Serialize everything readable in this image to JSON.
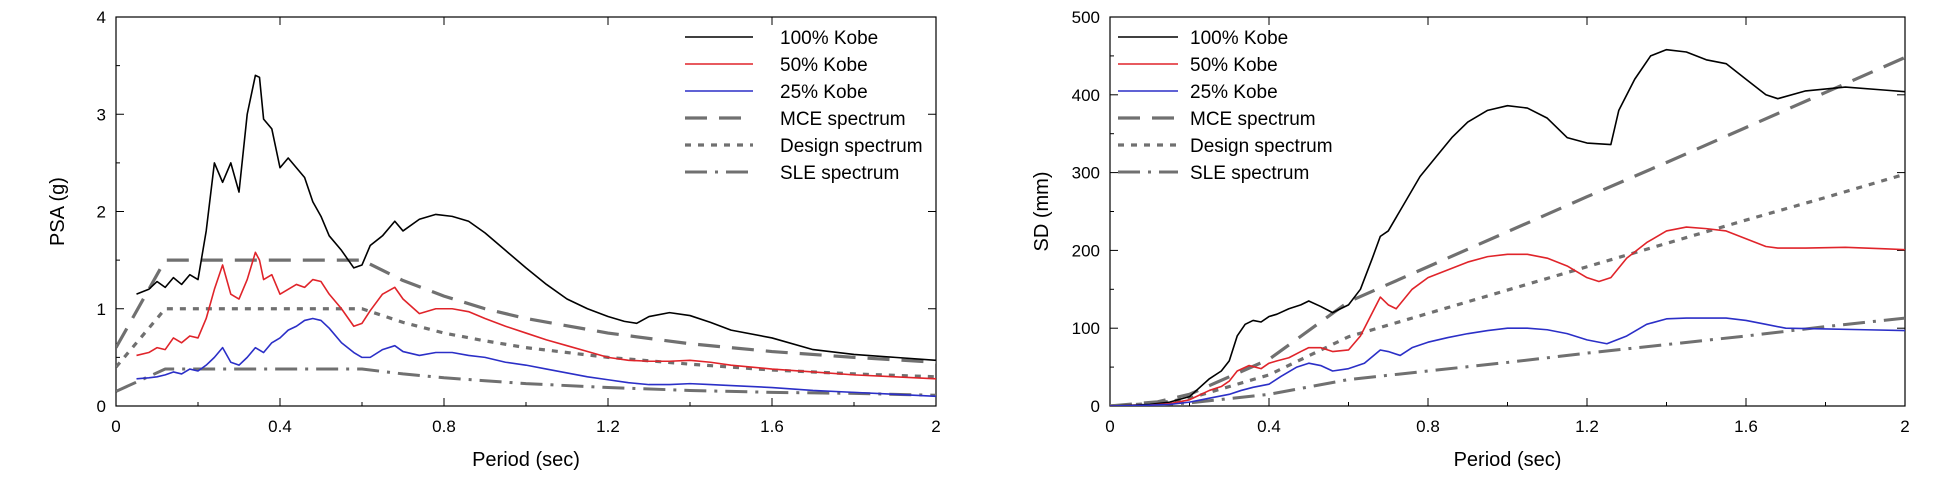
{
  "chart_data": [
    {
      "type": "line",
      "xlabel": "Period (sec)",
      "ylabel": "PSA (g)",
      "xlim": [
        0,
        2
      ],
      "ylim": [
        0,
        4
      ],
      "xticks": [
        "0",
        "0.4",
        "0.8",
        "1.2",
        "1.6",
        "2"
      ],
      "yticks": [
        "0",
        "1",
        "2",
        "3",
        "4"
      ],
      "grid": false,
      "legend_position": "top-right",
      "series": [
        {
          "name": "100% Kobe",
          "color": "#000000",
          "dash": "solid",
          "x": [
            0.05,
            0.08,
            0.1,
            0.12,
            0.14,
            0.16,
            0.18,
            0.2,
            0.22,
            0.24,
            0.26,
            0.28,
            0.3,
            0.32,
            0.34,
            0.35,
            0.36,
            0.38,
            0.4,
            0.42,
            0.44,
            0.46,
            0.48,
            0.5,
            0.52,
            0.55,
            0.58,
            0.6,
            0.62,
            0.65,
            0.68,
            0.7,
            0.74,
            0.78,
            0.82,
            0.86,
            0.9,
            0.95,
            1.0,
            1.05,
            1.1,
            1.15,
            1.2,
            1.24,
            1.27,
            1.3,
            1.35,
            1.4,
            1.45,
            1.5,
            1.6,
            1.7,
            1.8,
            1.9,
            2.0
          ],
          "y": [
            1.15,
            1.2,
            1.28,
            1.22,
            1.32,
            1.25,
            1.35,
            1.3,
            1.8,
            2.5,
            2.3,
            2.5,
            2.2,
            3.0,
            3.4,
            3.38,
            2.95,
            2.85,
            2.45,
            2.55,
            2.45,
            2.35,
            2.1,
            1.95,
            1.75,
            1.6,
            1.42,
            1.45,
            1.65,
            1.75,
            1.9,
            1.8,
            1.92,
            1.97,
            1.95,
            1.9,
            1.78,
            1.6,
            1.42,
            1.25,
            1.1,
            1.0,
            0.92,
            0.87,
            0.85,
            0.92,
            0.96,
            0.93,
            0.86,
            0.78,
            0.7,
            0.58,
            0.53,
            0.5,
            0.47
          ]
        },
        {
          "name": "50% Kobe",
          "color": "#e0242a",
          "dash": "solid",
          "x": [
            0.05,
            0.08,
            0.1,
            0.12,
            0.14,
            0.16,
            0.18,
            0.2,
            0.22,
            0.24,
            0.26,
            0.28,
            0.3,
            0.32,
            0.34,
            0.35,
            0.36,
            0.38,
            0.4,
            0.42,
            0.44,
            0.46,
            0.48,
            0.5,
            0.52,
            0.55,
            0.58,
            0.6,
            0.62,
            0.65,
            0.68,
            0.7,
            0.74,
            0.78,
            0.82,
            0.86,
            0.9,
            0.95,
            1.0,
            1.05,
            1.1,
            1.15,
            1.2,
            1.25,
            1.3,
            1.35,
            1.4,
            1.45,
            1.5,
            1.6,
            1.7,
            1.8,
            1.9,
            2.0
          ],
          "y": [
            0.52,
            0.55,
            0.6,
            0.58,
            0.7,
            0.65,
            0.72,
            0.7,
            0.9,
            1.2,
            1.45,
            1.15,
            1.1,
            1.3,
            1.58,
            1.5,
            1.3,
            1.35,
            1.15,
            1.2,
            1.25,
            1.22,
            1.3,
            1.28,
            1.15,
            1.0,
            0.82,
            0.85,
            0.98,
            1.15,
            1.22,
            1.1,
            0.95,
            1.0,
            1.0,
            0.97,
            0.9,
            0.82,
            0.75,
            0.68,
            0.62,
            0.56,
            0.5,
            0.47,
            0.46,
            0.46,
            0.47,
            0.45,
            0.42,
            0.38,
            0.35,
            0.32,
            0.3,
            0.28
          ]
        },
        {
          "name": "25% Kobe",
          "color": "#2b2fc7",
          "dash": "solid",
          "x": [
            0.05,
            0.08,
            0.1,
            0.12,
            0.14,
            0.16,
            0.18,
            0.2,
            0.22,
            0.24,
            0.26,
            0.28,
            0.3,
            0.32,
            0.34,
            0.36,
            0.38,
            0.4,
            0.42,
            0.44,
            0.46,
            0.48,
            0.5,
            0.52,
            0.55,
            0.58,
            0.6,
            0.62,
            0.65,
            0.68,
            0.7,
            0.74,
            0.78,
            0.82,
            0.86,
            0.9,
            0.95,
            1.0,
            1.05,
            1.1,
            1.15,
            1.2,
            1.25,
            1.3,
            1.35,
            1.4,
            1.45,
            1.5,
            1.6,
            1.7,
            1.8,
            1.9,
            2.0
          ],
          "y": [
            0.28,
            0.29,
            0.3,
            0.32,
            0.35,
            0.33,
            0.38,
            0.36,
            0.42,
            0.5,
            0.6,
            0.45,
            0.42,
            0.5,
            0.6,
            0.55,
            0.65,
            0.7,
            0.78,
            0.82,
            0.88,
            0.9,
            0.88,
            0.8,
            0.65,
            0.55,
            0.5,
            0.5,
            0.58,
            0.62,
            0.56,
            0.52,
            0.55,
            0.55,
            0.52,
            0.5,
            0.45,
            0.42,
            0.38,
            0.34,
            0.3,
            0.27,
            0.24,
            0.22,
            0.22,
            0.23,
            0.22,
            0.21,
            0.19,
            0.16,
            0.14,
            0.12,
            0.1
          ]
        },
        {
          "name": "MCE spectrum",
          "color": "#707070",
          "dash": "long",
          "x": [
            0.0,
            0.12,
            0.6,
            0.7,
            0.8,
            0.9,
            1.0,
            1.2,
            1.4,
            1.6,
            1.8,
            2.0
          ],
          "y": [
            0.6,
            1.5,
            1.5,
            1.29,
            1.13,
            1.0,
            0.9,
            0.75,
            0.64,
            0.56,
            0.5,
            0.45
          ]
        },
        {
          "name": "Design spectrum",
          "color": "#707070",
          "dash": "short",
          "x": [
            0.0,
            0.12,
            0.6,
            0.7,
            0.8,
            0.9,
            1.0,
            1.2,
            1.4,
            1.6,
            1.8,
            2.0
          ],
          "y": [
            0.4,
            1.0,
            1.0,
            0.86,
            0.75,
            0.67,
            0.6,
            0.5,
            0.43,
            0.37,
            0.33,
            0.3
          ]
        },
        {
          "name": "SLE spectrum",
          "color": "#707070",
          "dash": "dashdot",
          "x": [
            0.0,
            0.12,
            0.6,
            0.7,
            0.8,
            0.9,
            1.0,
            1.2,
            1.4,
            1.6,
            1.8,
            2.0
          ],
          "y": [
            0.15,
            0.38,
            0.38,
            0.33,
            0.29,
            0.26,
            0.23,
            0.19,
            0.16,
            0.14,
            0.13,
            0.11
          ]
        }
      ]
    },
    {
      "type": "line",
      "xlabel": "Period (sec)",
      "ylabel": "SD (mm)",
      "xlim": [
        0,
        2
      ],
      "ylim": [
        0,
        500
      ],
      "xticks": [
        "0",
        "0.4",
        "0.8",
        "1.2",
        "1.6",
        "2"
      ],
      "yticks": [
        "0",
        "100",
        "200",
        "300",
        "400",
        "500"
      ],
      "grid": false,
      "legend_position": "top-left",
      "series": [
        {
          "name": "100% Kobe",
          "color": "#000000",
          "dash": "solid",
          "x": [
            0.0,
            0.1,
            0.15,
            0.2,
            0.25,
            0.28,
            0.3,
            0.32,
            0.34,
            0.36,
            0.38,
            0.4,
            0.42,
            0.45,
            0.48,
            0.5,
            0.53,
            0.56,
            0.6,
            0.63,
            0.66,
            0.68,
            0.7,
            0.74,
            0.78,
            0.82,
            0.86,
            0.9,
            0.95,
            1.0,
            1.05,
            1.1,
            1.15,
            1.2,
            1.23,
            1.26,
            1.28,
            1.32,
            1.36,
            1.4,
            1.45,
            1.5,
            1.55,
            1.6,
            1.65,
            1.68,
            1.75,
            1.85,
            1.95,
            2.0
          ],
          "y": [
            0,
            2,
            5,
            12,
            35,
            45,
            58,
            90,
            105,
            110,
            108,
            115,
            118,
            125,
            130,
            135,
            128,
            120,
            130,
            150,
            190,
            218,
            225,
            260,
            295,
            320,
            345,
            365,
            380,
            386,
            383,
            370,
            345,
            338,
            337,
            336,
            380,
            420,
            450,
            458,
            455,
            445,
            440,
            420,
            400,
            395,
            405,
            410,
            406,
            404
          ]
        },
        {
          "name": "50% Kobe",
          "color": "#e0242a",
          "dash": "solid",
          "x": [
            0.0,
            0.1,
            0.15,
            0.2,
            0.25,
            0.28,
            0.3,
            0.32,
            0.35,
            0.38,
            0.4,
            0.42,
            0.45,
            0.48,
            0.5,
            0.53,
            0.56,
            0.6,
            0.63,
            0.66,
            0.68,
            0.7,
            0.72,
            0.76,
            0.8,
            0.85,
            0.9,
            0.95,
            1.0,
            1.05,
            1.1,
            1.15,
            1.2,
            1.23,
            1.26,
            1.3,
            1.35,
            1.4,
            1.45,
            1.5,
            1.55,
            1.6,
            1.65,
            1.68,
            1.75,
            1.85,
            1.95,
            2.0
          ],
          "y": [
            0,
            1,
            3,
            8,
            20,
            25,
            32,
            45,
            52,
            48,
            55,
            58,
            62,
            70,
            75,
            75,
            70,
            72,
            90,
            120,
            140,
            130,
            125,
            150,
            165,
            175,
            185,
            192,
            195,
            195,
            190,
            180,
            165,
            160,
            165,
            190,
            210,
            225,
            230,
            228,
            225,
            215,
            205,
            203,
            203,
            204,
            202,
            201
          ]
        },
        {
          "name": "25% Kobe",
          "color": "#2b2fc7",
          "dash": "solid",
          "x": [
            0.0,
            0.1,
            0.15,
            0.2,
            0.25,
            0.3,
            0.33,
            0.36,
            0.4,
            0.43,
            0.47,
            0.5,
            0.53,
            0.56,
            0.6,
            0.64,
            0.68,
            0.7,
            0.73,
            0.76,
            0.8,
            0.85,
            0.9,
            0.95,
            1.0,
            1.05,
            1.1,
            1.15,
            1.2,
            1.25,
            1.3,
            1.35,
            1.4,
            1.45,
            1.5,
            1.55,
            1.6,
            1.65,
            1.7,
            1.8,
            1.9,
            2.0
          ],
          "y": [
            0,
            1,
            2,
            5,
            10,
            15,
            20,
            24,
            28,
            38,
            50,
            55,
            52,
            45,
            48,
            55,
            72,
            70,
            65,
            75,
            82,
            88,
            93,
            97,
            100,
            100,
            98,
            93,
            85,
            80,
            90,
            105,
            112,
            113,
            113,
            113,
            110,
            105,
            100,
            99,
            98,
            97
          ]
        },
        {
          "name": "MCE spectrum",
          "color": "#707070",
          "dash": "long",
          "x": [
            0.0,
            0.12,
            0.2,
            0.4,
            0.6,
            0.8,
            1.0,
            1.2,
            1.4,
            1.6,
            1.8,
            2.0
          ],
          "y": [
            0,
            5.4,
            15,
            60,
            134,
            179,
            224,
            269,
            313,
            358,
            403,
            448
          ]
        },
        {
          "name": "Design spectrum",
          "color": "#707070",
          "dash": "short",
          "x": [
            0.0,
            0.12,
            0.2,
            0.4,
            0.6,
            0.8,
            1.0,
            1.2,
            1.4,
            1.6,
            1.8,
            2.0
          ],
          "y": [
            0,
            3.6,
            10,
            40,
            89,
            119,
            149,
            179,
            209,
            239,
            268,
            298
          ]
        },
        {
          "name": "SLE spectrum",
          "color": "#707070",
          "dash": "dashdot",
          "x": [
            0.0,
            0.12,
            0.2,
            0.4,
            0.6,
            0.8,
            1.0,
            1.2,
            1.4,
            1.6,
            1.8,
            2.0
          ],
          "y": [
            0,
            1.4,
            4,
            15,
            34,
            45,
            56,
            68,
            79,
            90,
            102,
            113
          ]
        }
      ]
    }
  ]
}
